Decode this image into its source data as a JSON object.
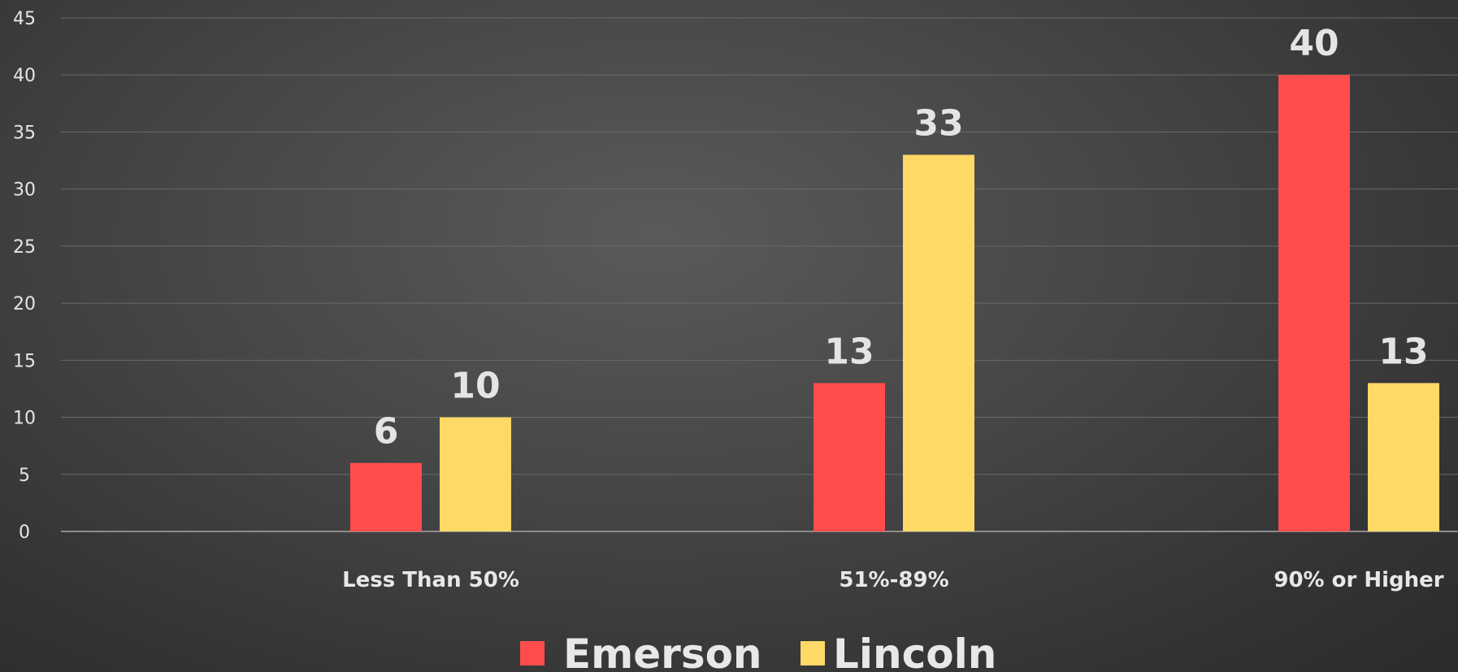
{
  "chart_data": {
    "type": "bar",
    "categories": [
      "Less Than 50%",
      "51%-89%",
      "90% or Higher"
    ],
    "series": [
      {
        "name": "Emerson",
        "values": [
          6,
          13,
          40
        ],
        "color": "#ff4d4d"
      },
      {
        "name": "Lincoln",
        "values": [
          10,
          33,
          13
        ],
        "color": "#ffd966"
      }
    ],
    "title": "",
    "xlabel": "",
    "ylabel": "",
    "ylim": [
      0,
      45
    ],
    "yticks": [
      0,
      5,
      10,
      15,
      20,
      25,
      30,
      35,
      40,
      45
    ],
    "grid": true,
    "data_labels": true,
    "legend_position": "bottom"
  }
}
